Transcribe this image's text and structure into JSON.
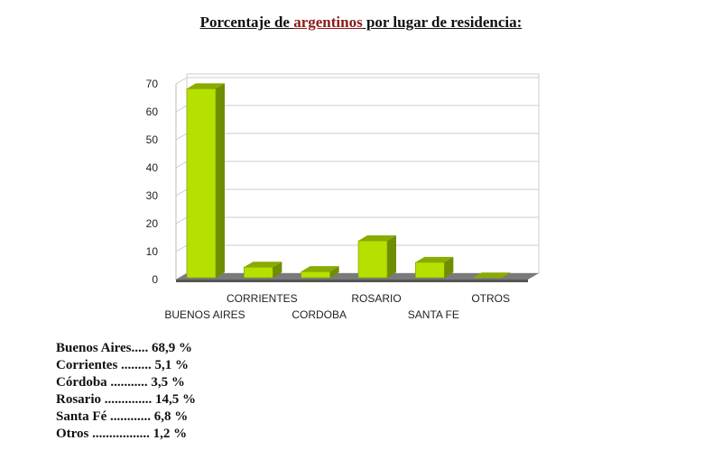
{
  "title": {
    "before": "Porcentaje de ",
    "highlight": "argentinos",
    "after": " por lugar de residencia",
    "colon": ":"
  },
  "chart_data": {
    "type": "bar",
    "title": "",
    "xlabel": "",
    "ylabel": "",
    "categories": [
      "BUENOS AIRES",
      "CORRIENTES",
      "CORDOBA",
      "ROSARIO",
      "SANTA FE",
      "OTROS"
    ],
    "values": [
      68.9,
      5.1,
      3.5,
      14.5,
      6.8,
      1.2
    ],
    "ylim": [
      0,
      70
    ],
    "yticks": [
      0,
      10,
      20,
      30,
      40,
      50,
      60,
      70
    ],
    "grid": true,
    "style": "3d",
    "bar_color": "#b5e000",
    "bar_side_color": "#6f8d00",
    "bar_top_color": "#8aab00",
    "floor_color": "#7a7a7a",
    "legend": "none"
  },
  "summary": [
    "Buenos Aires..... 68,9 %",
    "Corrientes ......... 5,1 %",
    "Córdoba ........... 3,5 %",
    "Rosario .............. 14,5 %",
    "Santa Fé ............ 6,8 %",
    "Otros ................. 1,2 %"
  ]
}
